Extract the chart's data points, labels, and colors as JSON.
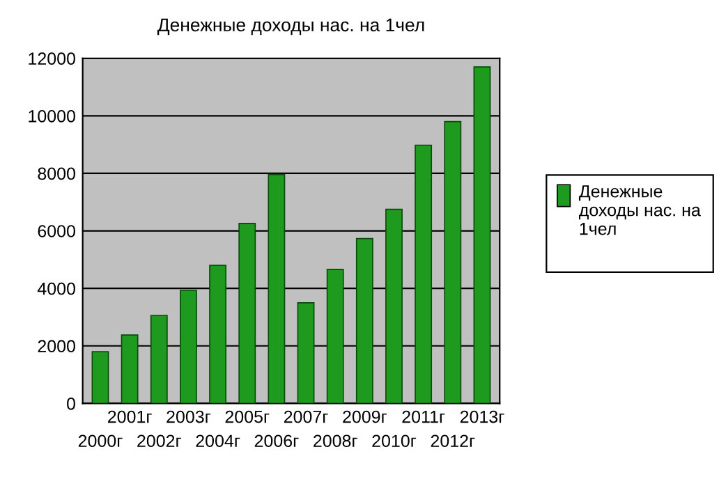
{
  "chart_data": {
    "type": "bar",
    "title": "Денежные доходы нас. на 1чел",
    "categories": [
      "2000г",
      "2001г",
      "2002г",
      "2003г",
      "2004г",
      "2005г",
      "2006г",
      "2007г",
      "2008г",
      "2009г",
      "2010г",
      "2011г",
      "2012г",
      "2013г"
    ],
    "series": [
      {
        "name": "Денежные доходы нас. на 1чел",
        "color": "#1e9a1e",
        "values": [
          1800,
          2380,
          3060,
          3930,
          4800,
          6260,
          7960,
          3500,
          4660,
          5730,
          6750,
          8980,
          9800,
          11700
        ]
      }
    ],
    "ylim": [
      0,
      12000
    ],
    "yticks": [
      0,
      2000,
      4000,
      6000,
      8000,
      10000,
      12000
    ],
    "grid": "y",
    "legend": "right"
  }
}
